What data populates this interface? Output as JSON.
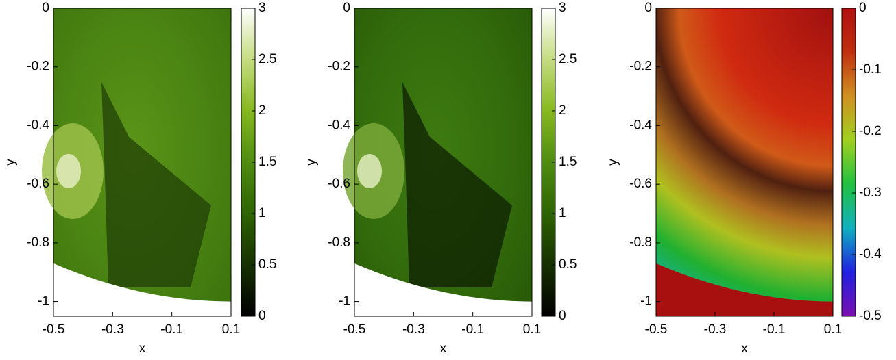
{
  "chart_data": [
    {
      "type": "image",
      "xlabel": "x",
      "ylabel": "y",
      "xlim": [
        -0.5,
        0.1
      ],
      "xticks": [
        -0.5,
        -0.3,
        -0.1,
        0.1
      ],
      "ylim": [
        -1.05,
        0
      ],
      "yticks": [
        0,
        -0.2,
        -0.4,
        -0.6,
        -0.8,
        -1
      ],
      "colorbar": {
        "lim": [
          0,
          3
        ],
        "ticks": [
          0,
          0.5,
          1,
          1.5,
          2,
          2.5,
          3
        ],
        "colors": [
          "#000000",
          "#163000",
          "#2e6400",
          "#4f8c10",
          "#86b81e",
          "#c4dc80",
          "#ffffff"
        ]
      }
    },
    {
      "type": "image",
      "xlabel": "x",
      "ylabel": "y",
      "xlim": [
        -0.5,
        0.1
      ],
      "xticks": [
        -0.5,
        -0.3,
        -0.1,
        0.1
      ],
      "ylim": [
        -1.05,
        0
      ],
      "yticks": [
        0,
        -0.2,
        -0.4,
        -0.6,
        -0.8,
        -1
      ],
      "colorbar": {
        "lim": [
          0,
          3
        ],
        "ticks": [
          0,
          0.5,
          1,
          1.5,
          2,
          2.5,
          3
        ],
        "colors": [
          "#000000",
          "#163000",
          "#2e6400",
          "#4f8c10",
          "#86b81e",
          "#c4dc80",
          "#ffffff"
        ]
      }
    },
    {
      "type": "image",
      "xlabel": "x",
      "ylabel": "y",
      "xlim": [
        -0.5,
        0.1
      ],
      "xticks": [
        -0.5,
        -0.3,
        -0.1,
        0.1
      ],
      "ylim": [
        -1.05,
        0
      ],
      "yticks": [
        0,
        -0.2,
        -0.4,
        -0.6,
        -0.8,
        -1
      ],
      "colorbar": {
        "lim": [
          -0.5,
          0
        ],
        "ticks": [
          -0.5,
          -0.4,
          -0.3,
          -0.2,
          -0.1,
          0
        ],
        "colors": [
          "#7a10b0",
          "#2020e0",
          "#10b0c0",
          "#20c040",
          "#a0d020",
          "#d09020",
          "#c03010",
          "#b01010"
        ]
      }
    }
  ]
}
